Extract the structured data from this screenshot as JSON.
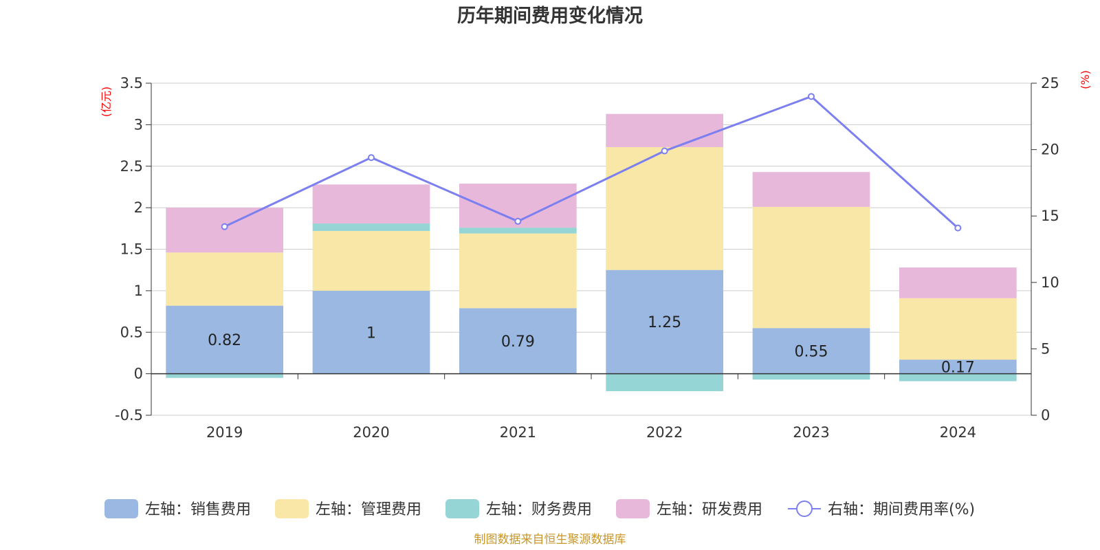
{
  "chart_data": {
    "type": "bar",
    "title": "历年期间费用变化情况",
    "categories": [
      "2019",
      "2020",
      "2021",
      "2022",
      "2023",
      "2024"
    ],
    "left_axis": {
      "unit": "(亿元)",
      "ylim": [
        -0.5,
        3.5
      ],
      "ticks": [
        "-0.5",
        "0",
        "0.5",
        "1",
        "1.5",
        "2",
        "2.5",
        "3",
        "3.5"
      ]
    },
    "right_axis": {
      "unit": "(%)",
      "ylim": [
        0,
        25
      ],
      "ticks": [
        "0",
        "5",
        "10",
        "15",
        "20",
        "25"
      ]
    },
    "series": [
      {
        "name": "左轴：销售费用",
        "axis": "left",
        "kind": "bar",
        "color": "#9ab8e1",
        "values": [
          0.82,
          1.0,
          0.79,
          1.25,
          0.55,
          0.17
        ],
        "labels": [
          "0.82",
          "1",
          "0.79",
          "1.25",
          "0.55",
          "0.17"
        ]
      },
      {
        "name": "左轴：管理费用",
        "axis": "left",
        "kind": "bar",
        "color": "#f8e7a6",
        "values": [
          0.64,
          0.72,
          0.9,
          1.48,
          1.46,
          0.74
        ]
      },
      {
        "name": "左轴：财务费用",
        "axis": "left",
        "kind": "bar",
        "color": "#95d5d5",
        "values": [
          -0.05,
          0.09,
          0.07,
          -0.21,
          -0.07,
          -0.09
        ]
      },
      {
        "name": "左轴：研发费用",
        "axis": "left",
        "kind": "bar",
        "color": "#e8b8da",
        "values": [
          0.54,
          0.47,
          0.53,
          0.4,
          0.42,
          0.37
        ]
      },
      {
        "name": "右轴：期间费用率(%)",
        "axis": "right",
        "kind": "line",
        "color": "#7b7ff0",
        "values": [
          14.2,
          19.4,
          14.6,
          19.9,
          24.0,
          14.1
        ]
      }
    ],
    "legend_position": "bottom",
    "grid": true
  },
  "source_note": "制图数据来自恒生聚源数据库"
}
